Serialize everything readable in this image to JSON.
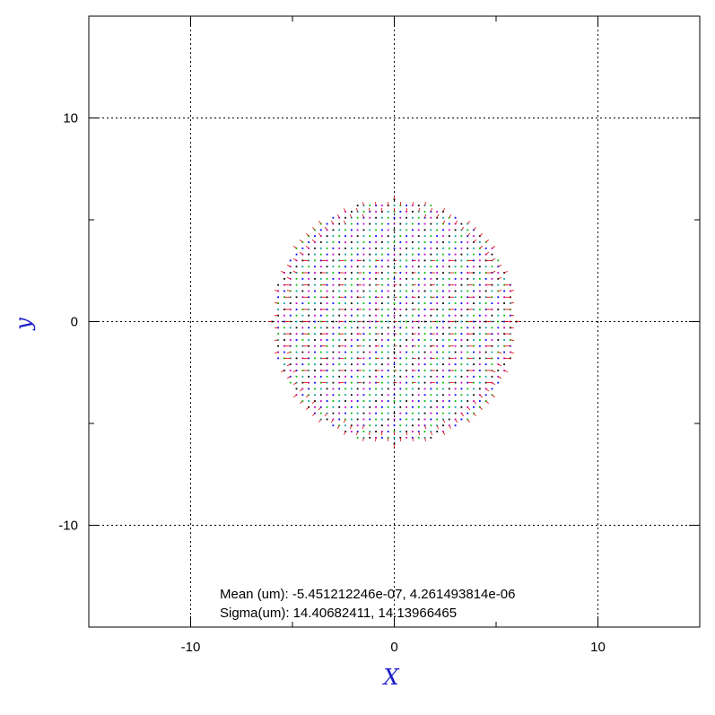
{
  "chart_data": {
    "type": "scatter",
    "xlabel": "X",
    "ylabel": "y",
    "xlim": [
      -15,
      15
    ],
    "ylim": [
      -15,
      15
    ],
    "x_ticks": [
      -10,
      0,
      10
    ],
    "y_ticks": [
      -10,
      0,
      10
    ],
    "x_tick_labels": [
      "-10",
      "0",
      "10"
    ],
    "y_tick_labels": [
      "-10",
      "0",
      "10"
    ],
    "grid": true,
    "grid_style": "dotted",
    "spot": {
      "shape": "disc",
      "center": [
        0,
        0
      ],
      "radius": 6,
      "grid_step": 0.3,
      "point_colors": [
        "#000000",
        "#00c000",
        "#cc00cc",
        "#00a0a0",
        "#0000ff"
      ],
      "vector_color": "#e00000"
    },
    "annotations": [
      "Mean (um): -5.451212246e-07, 4.261493814e-06",
      "Sigma(um): 14.40682411, 14.13966465"
    ]
  },
  "colors": {
    "axis_title": "#1a1acc",
    "frame": "#000000",
    "grid": "#000000"
  }
}
